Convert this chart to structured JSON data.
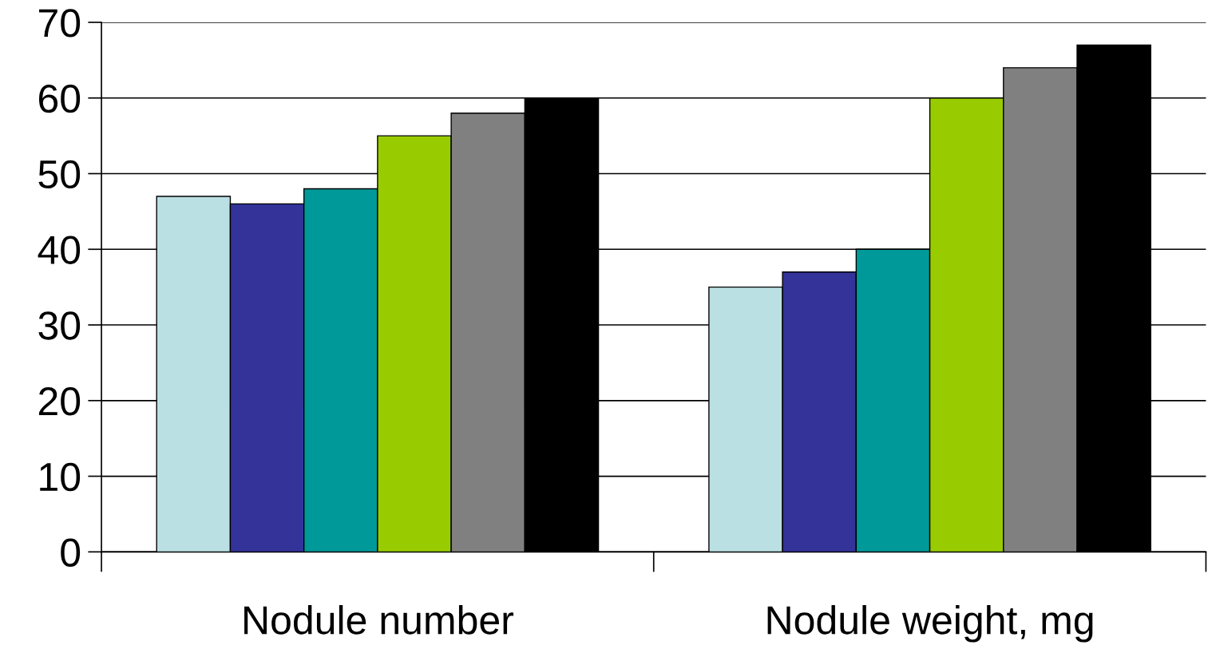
{
  "chart_data": {
    "type": "bar",
    "categories": [
      "Nodule number",
      "Nodule weight, mg"
    ],
    "series": [
      {
        "color": "#bbe0e3",
        "values": [
          47,
          35
        ]
      },
      {
        "color": "#333399",
        "values": [
          46,
          37
        ]
      },
      {
        "color": "#009999",
        "values": [
          48,
          40
        ]
      },
      {
        "color": "#99cc00",
        "values": [
          55,
          60
        ]
      },
      {
        "color": "#808080",
        "values": [
          58,
          64
        ]
      },
      {
        "color": "#000000",
        "values": [
          60,
          67
        ]
      }
    ],
    "ylim": [
      0,
      70
    ],
    "yticks": [
      0,
      10,
      20,
      30,
      40,
      50,
      60,
      70
    ],
    "grid": "y",
    "legend": false
  }
}
